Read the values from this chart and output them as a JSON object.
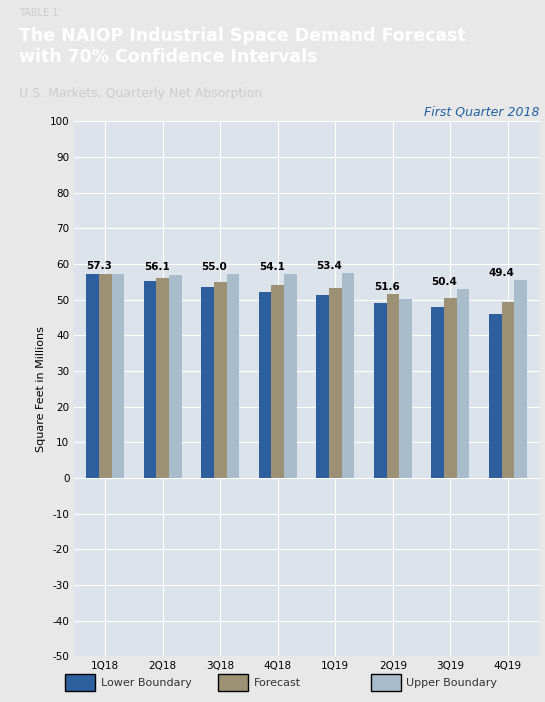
{
  "table_label": "TABLE 1",
  "title": "The NAIOP Industrial Space Demand Forecast\nwith 70% Confidence Intervals",
  "subtitle": "U.S. Markets, Quarterly Net Absorption",
  "annotation": "First Quarter 2018",
  "annotation_color": "#2060a0",
  "categories": [
    "1Q18",
    "2Q18",
    "3Q18",
    "4Q18",
    "1Q19",
    "2Q19",
    "3Q19",
    "4Q19"
  ],
  "forecast_vals": [
    57.3,
    56.1,
    55.0,
    54.1,
    53.4,
    51.6,
    50.4,
    49.4
  ],
  "lower_vals": [
    57.3,
    55.3,
    53.5,
    52.3,
    51.3,
    49.2,
    48.0,
    46.0
  ],
  "upper_vals": [
    57.3,
    57.0,
    57.2,
    57.2,
    57.5,
    50.3,
    53.0,
    55.5
  ],
  "lower_color": "#2d5f9e",
  "forecast_color": "#9c9075",
  "upper_color": "#a8bccc",
  "ylabel": "Square Feet in Millions",
  "ylim": [
    -50,
    100
  ],
  "yticks": [
    -50,
    -40,
    -30,
    -20,
    -10,
    0,
    10,
    20,
    30,
    40,
    50,
    60,
    70,
    80,
    90,
    100
  ],
  "header_bg": "#585858",
  "plot_bg": "#dce3ea",
  "bar_width": 0.22,
  "grid_color": "#ffffff",
  "legend_labels": [
    "Lower Boundary",
    "Forecast",
    "Upper Boundary"
  ],
  "title_color": "#ffffff",
  "subtitle_color": "#cccccc",
  "table_label_color": "#cccccc",
  "value_label_fontsize": 7.5,
  "tick_fontsize": 7.5,
  "ylabel_fontsize": 8,
  "annotation_fontsize": 9,
  "fig_bg": "#e8e8e8"
}
